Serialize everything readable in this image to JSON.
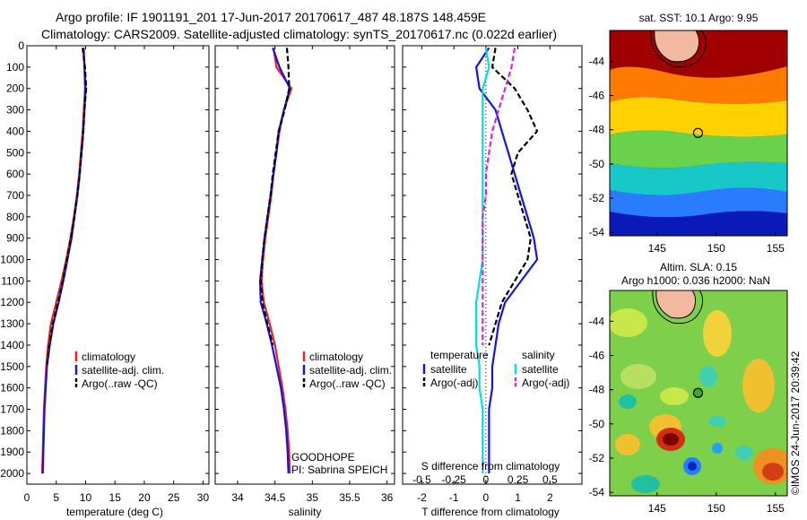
{
  "header": {
    "title_line1": "Argo profile: IF 1901191_201 17-Jun-2017 20170617_487 48.187S 148.459E",
    "title_line2": "Climatology: CARS2009. Satellite-adjusted climatology: synTS_20170617.nc (0.022d earlier)"
  },
  "colors": {
    "climatology": "#e8231f",
    "satellite": "#1414e0",
    "argo": "#000000",
    "salinity_satellite": "#00e0e0",
    "salinity_argo": "#e020e0"
  },
  "chart_data": [
    {
      "type": "line",
      "name": "temperature-profile",
      "xlabel": "temperature (deg C)",
      "xlim": [
        0,
        31
      ],
      "ylim": [
        2050,
        0
      ],
      "xticks": [
        0,
        5,
        10,
        15,
        20,
        25,
        30
      ],
      "yticks": [
        0,
        100,
        200,
        300,
        400,
        500,
        600,
        700,
        800,
        900,
        1000,
        1100,
        1200,
        1300,
        1400,
        1500,
        1600,
        1700,
        1800,
        1900,
        2000
      ],
      "legend": [
        "climatology",
        "satellite-adj. clim.",
        "Argo(..raw -QC)"
      ],
      "series": [
        {
          "name": "climatology",
          "color": "#e8231f",
          "style": "solid",
          "x": [
            9.7,
            9.8,
            9.9,
            9.7,
            9.5,
            9.2,
            8.9,
            8.5,
            8.0,
            7.4,
            6.7,
            5.9,
            5.0,
            4.1,
            3.6,
            3.3,
            3.1,
            2.9,
            2.8,
            2.7,
            2.6
          ],
          "y": [
            10,
            100,
            200,
            300,
            400,
            500,
            600,
            700,
            800,
            900,
            1000,
            1100,
            1200,
            1300,
            1400,
            1500,
            1600,
            1700,
            1800,
            1900,
            2000
          ]
        },
        {
          "name": "satellite-adj. clim.",
          "color": "#1414e0",
          "style": "solid",
          "x": [
            9.6,
            9.8,
            10.0,
            9.8,
            9.6,
            9.3,
            9.0,
            8.6,
            8.1,
            7.6,
            6.9,
            6.2,
            5.4,
            4.5,
            3.9,
            3.4,
            3.2,
            3.0,
            2.9,
            2.8,
            2.7
          ],
          "y": [
            10,
            100,
            200,
            300,
            400,
            500,
            600,
            700,
            800,
            900,
            1000,
            1100,
            1200,
            1300,
            1400,
            1500,
            1600,
            1700,
            1800,
            1900,
            2000
          ]
        },
        {
          "name": "Argo(..raw -QC)",
          "color": "#000000",
          "style": "dashed",
          "x": [
            9.5,
            9.9,
            10.1,
            9.8,
            9.6,
            9.3,
            9.0,
            8.6,
            8.1,
            7.5,
            6.8,
            6.1,
            5.3,
            4.4,
            3.8,
            3.4
          ],
          "y": [
            10,
            100,
            200,
            300,
            400,
            500,
            600,
            700,
            800,
            900,
            1000,
            1100,
            1200,
            1300,
            1400,
            1500
          ]
        }
      ]
    },
    {
      "type": "line",
      "name": "salinity-profile",
      "xlabel": "salinity",
      "xlim": [
        33.7,
        36.1
      ],
      "ylim": [
        2050,
        0
      ],
      "xticks": [
        34,
        34.5,
        35,
        35.5,
        36
      ],
      "legend": [
        "climatology",
        "satellite-adj. clim.",
        "Argo(..raw -QC)"
      ],
      "annotation": [
        "GOODHOPE",
        "PI: Sabrina SPEICH"
      ],
      "series": [
        {
          "name": "climatology",
          "color": "#e8231f",
          "style": "solid",
          "x": [
            34.48,
            34.52,
            34.72,
            34.62,
            34.56,
            34.52,
            34.48,
            34.45,
            34.41,
            34.37,
            34.34,
            34.32,
            34.35,
            34.43,
            34.5,
            34.55,
            34.6,
            34.64,
            34.67,
            34.69,
            34.7
          ],
          "y": [
            10,
            100,
            200,
            300,
            400,
            500,
            600,
            700,
            800,
            900,
            1000,
            1100,
            1200,
            1300,
            1400,
            1500,
            1600,
            1700,
            1800,
            1900,
            2000
          ]
        },
        {
          "name": "satellite-adj. clim.",
          "color": "#1414e0",
          "style": "solid",
          "x": [
            34.47,
            34.56,
            34.7,
            34.62,
            34.55,
            34.52,
            34.48,
            34.44,
            34.4,
            34.36,
            34.33,
            34.3,
            34.31,
            34.39,
            34.46,
            34.52,
            34.58,
            34.62,
            34.65,
            34.67,
            34.68
          ],
          "y": [
            10,
            100,
            200,
            300,
            400,
            500,
            600,
            700,
            800,
            900,
            1000,
            1100,
            1200,
            1300,
            1400,
            1500,
            1600,
            1700,
            1800,
            1900,
            2000
          ]
        },
        {
          "name": "Argo(..raw -QC)",
          "color": "#000000",
          "style": "dashed",
          "x": [
            34.66,
            34.68,
            34.69,
            34.63,
            34.55,
            34.51,
            34.47,
            34.44,
            34.4,
            34.36,
            34.33,
            34.31,
            34.33,
            34.4,
            34.47
          ],
          "y": [
            10,
            100,
            200,
            300,
            400,
            500,
            600,
            700,
            800,
            900,
            1000,
            1100,
            1200,
            1300,
            1400
          ]
        }
      ]
    },
    {
      "type": "line",
      "name": "difference-profile",
      "xlabel": "T difference from climatology",
      "xlabel_top": "S difference from climatology",
      "xlim": [
        -2.6,
        3
      ],
      "ylim": [
        2050,
        0
      ],
      "xticks": [
        -2,
        -1,
        0,
        1,
        2
      ],
      "xticklabels_s": [
        "-0.5",
        "-0.25",
        "0",
        "0.25",
        "0.5"
      ],
      "xticks_s_pos": [
        -2,
        -1,
        0,
        1,
        2
      ],
      "legend_titles": [
        "temperature",
        "salinity"
      ],
      "legend": [
        "satellite",
        "Argo(-adj)",
        "satellite",
        "Argo(-adj)"
      ],
      "series": [
        {
          "name": "temperature satellite",
          "color": "#1414e0",
          "style": "solid",
          "x": [
            0.1,
            -0.3,
            -0.2,
            0.3,
            0.5,
            0.7,
            0.9,
            1.1,
            1.3,
            1.5,
            1.6,
            1.1,
            0.6,
            0.4,
            0.3,
            0.2,
            0.2,
            0.1,
            0.1,
            0.1,
            0.1
          ],
          "y": [
            10,
            100,
            200,
            300,
            400,
            500,
            600,
            700,
            800,
            900,
            1000,
            1100,
            1200,
            1300,
            1400,
            1500,
            1600,
            1700,
            1800,
            1900,
            2000
          ]
        },
        {
          "name": "temperature Argo(-adj)",
          "color": "#000000",
          "style": "dashed",
          "x": [
            0.3,
            0.2,
            0.9,
            1.3,
            1.6,
            1.0,
            0.8,
            1.0,
            1.2,
            1.4,
            1.3,
            0.9,
            0.5,
            0.3,
            0.1
          ],
          "y": [
            10,
            100,
            200,
            300,
            400,
            500,
            600,
            700,
            800,
            900,
            1000,
            1100,
            1200,
            1300,
            1400
          ]
        },
        {
          "name": "salinity satellite",
          "color": "#00e0e0",
          "style": "solid",
          "x": [
            0.0,
            0.1,
            -0.1,
            -0.1,
            -0.1,
            -0.1,
            -0.1,
            -0.1,
            -0.1,
            -0.1,
            -0.1,
            -0.2,
            -0.3,
            -0.3,
            -0.3,
            -0.2,
            -0.2,
            -0.1,
            -0.1,
            -0.1,
            -0.1
          ],
          "y": [
            10,
            100,
            200,
            300,
            400,
            500,
            600,
            700,
            800,
            900,
            1000,
            1100,
            1200,
            1300,
            1400,
            1500,
            1600,
            1700,
            1800,
            1900,
            2000
          ]
        },
        {
          "name": "salinity Argo(-adj)",
          "color": "#e020e0",
          "style": "dashed",
          "x": [
            0.9,
            0.8,
            0.6,
            0.4,
            0.2,
            0.1,
            0.0,
            0.0,
            -0.1,
            -0.1,
            -0.1,
            -0.1,
            -0.1,
            -0.1,
            -0.1
          ],
          "y": [
            10,
            100,
            200,
            300,
            400,
            500,
            600,
            700,
            800,
            900,
            1000,
            1100,
            1200,
            1300,
            1400
          ]
        }
      ]
    },
    {
      "type": "heatmap",
      "name": "sst-map",
      "title": "sat. SST: 10.1 Argo: 9.95",
      "xlim": [
        141,
        156
      ],
      "ylim": [
        -54.2,
        -42.2
      ],
      "xticks": [
        145,
        150,
        155
      ],
      "yticks": [
        -44,
        -46,
        -48,
        -50,
        -52,
        -54
      ],
      "marker": {
        "lon": 148.459,
        "lat": -48.187
      }
    },
    {
      "type": "heatmap",
      "name": "sla-map",
      "title_line1": "Altim. SLA: 0.15",
      "title_line2": "Argo h1000: 0.036 h2000: NaN",
      "xlim": [
        141,
        156
      ],
      "ylim": [
        -54.2,
        -42.2
      ],
      "xticks": [
        145,
        150,
        155
      ],
      "yticks": [
        -44,
        -46,
        -48,
        -50,
        -52,
        -54
      ],
      "marker": {
        "lon": 148.459,
        "lat": -48.187
      },
      "credit": "©IMOS 24-Jun-2017 20:39:42"
    }
  ]
}
